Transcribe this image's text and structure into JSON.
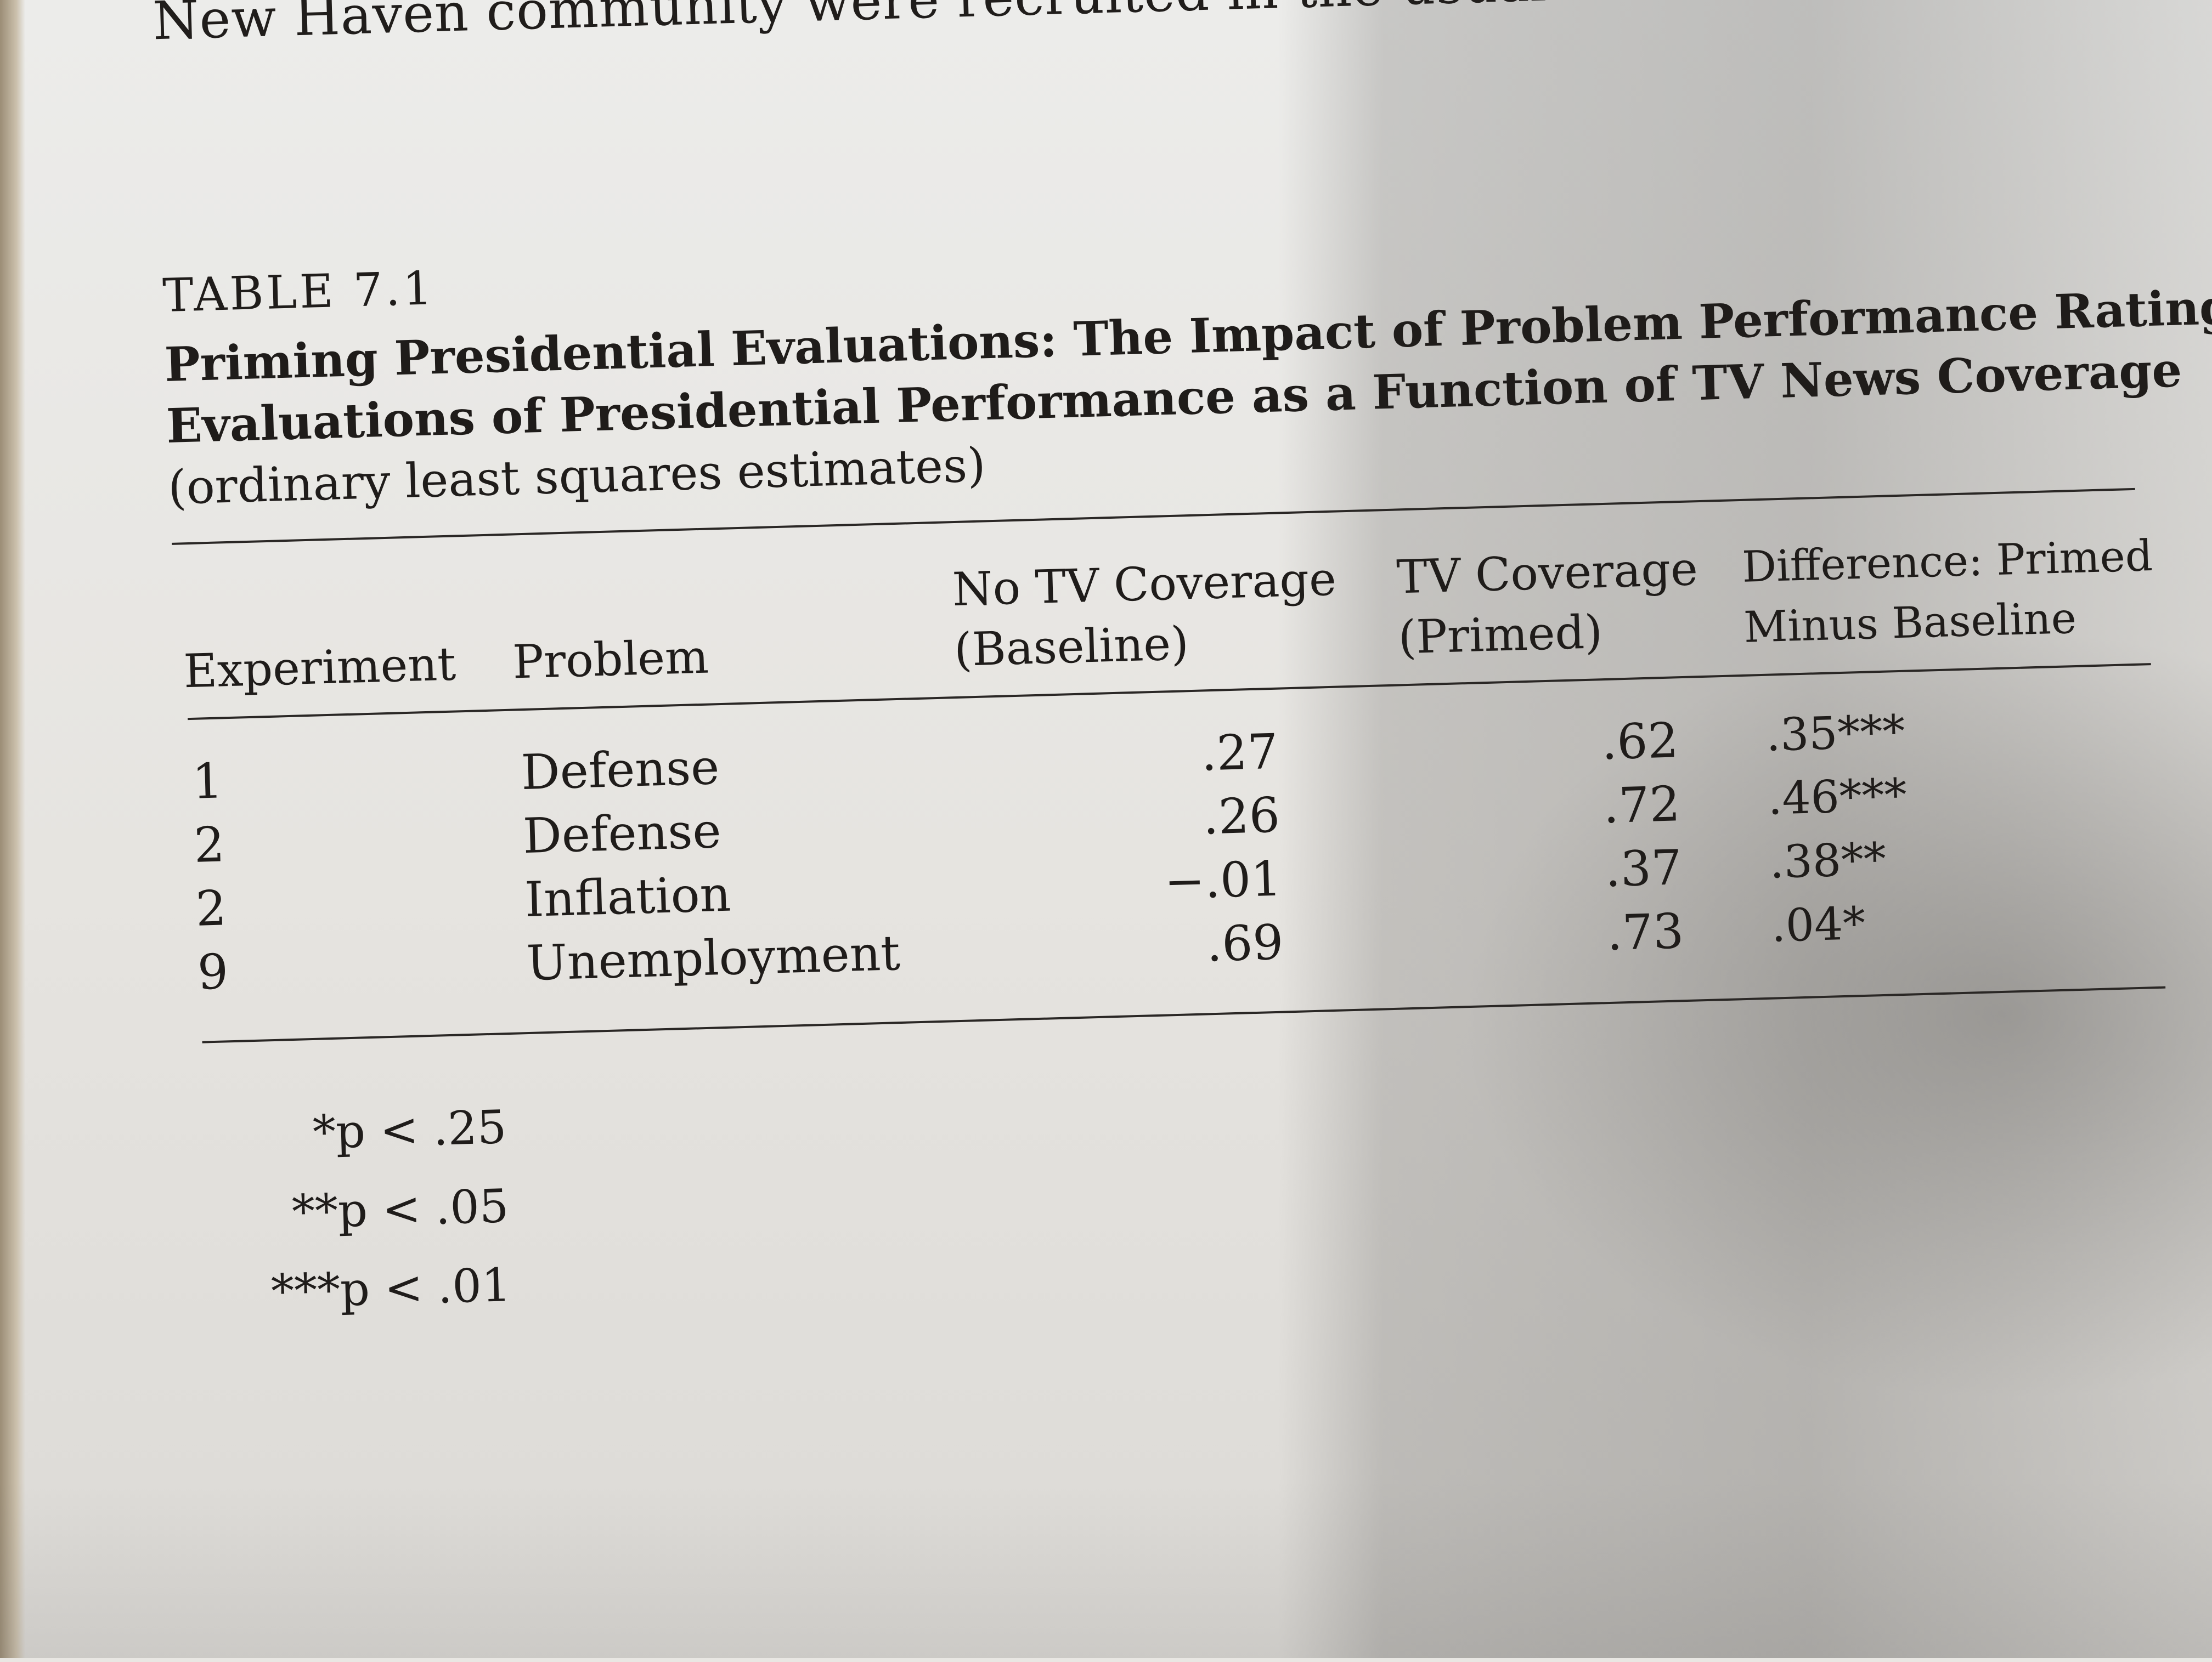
{
  "running_text": "New Haven community were recruited in the usual manner and ran-",
  "table": {
    "label": "TABLE 7.1",
    "title_lines": [
      "Priming Presidential Evaluations: The Impact of Problem Performance Ratings on",
      "Evaluations of Presidential Performance as a Function of TV News Coverage"
    ],
    "subtitle": "(ordinary least squares estimates)",
    "headers": {
      "experiment": "Experiment",
      "problem": "Problem",
      "baseline_line1": "No TV Coverage",
      "baseline_line2": "(Baseline)",
      "primed_line1": "TV Coverage",
      "primed_line2": "(Primed)",
      "difference_line1": "Difference: Primed",
      "difference_line2": "Minus Baseline"
    },
    "rows": [
      {
        "experiment": "1",
        "problem": "Defense",
        "baseline": ".27",
        "primed": ".62",
        "difference": ".35***"
      },
      {
        "experiment": "2",
        "problem": "Defense",
        "baseline": ".26",
        "primed": ".72",
        "difference": ".46***"
      },
      {
        "experiment": "2",
        "problem": "Inflation",
        "baseline": "−.01",
        "primed": ".37",
        "difference": ".38**"
      },
      {
        "experiment": "9",
        "problem": "Unemployment",
        "baseline": ".69",
        "primed": ".73",
        "difference": ".04*"
      }
    ],
    "notes": [
      "*p < .25",
      "**p < .05",
      "***p < .01"
    ]
  }
}
